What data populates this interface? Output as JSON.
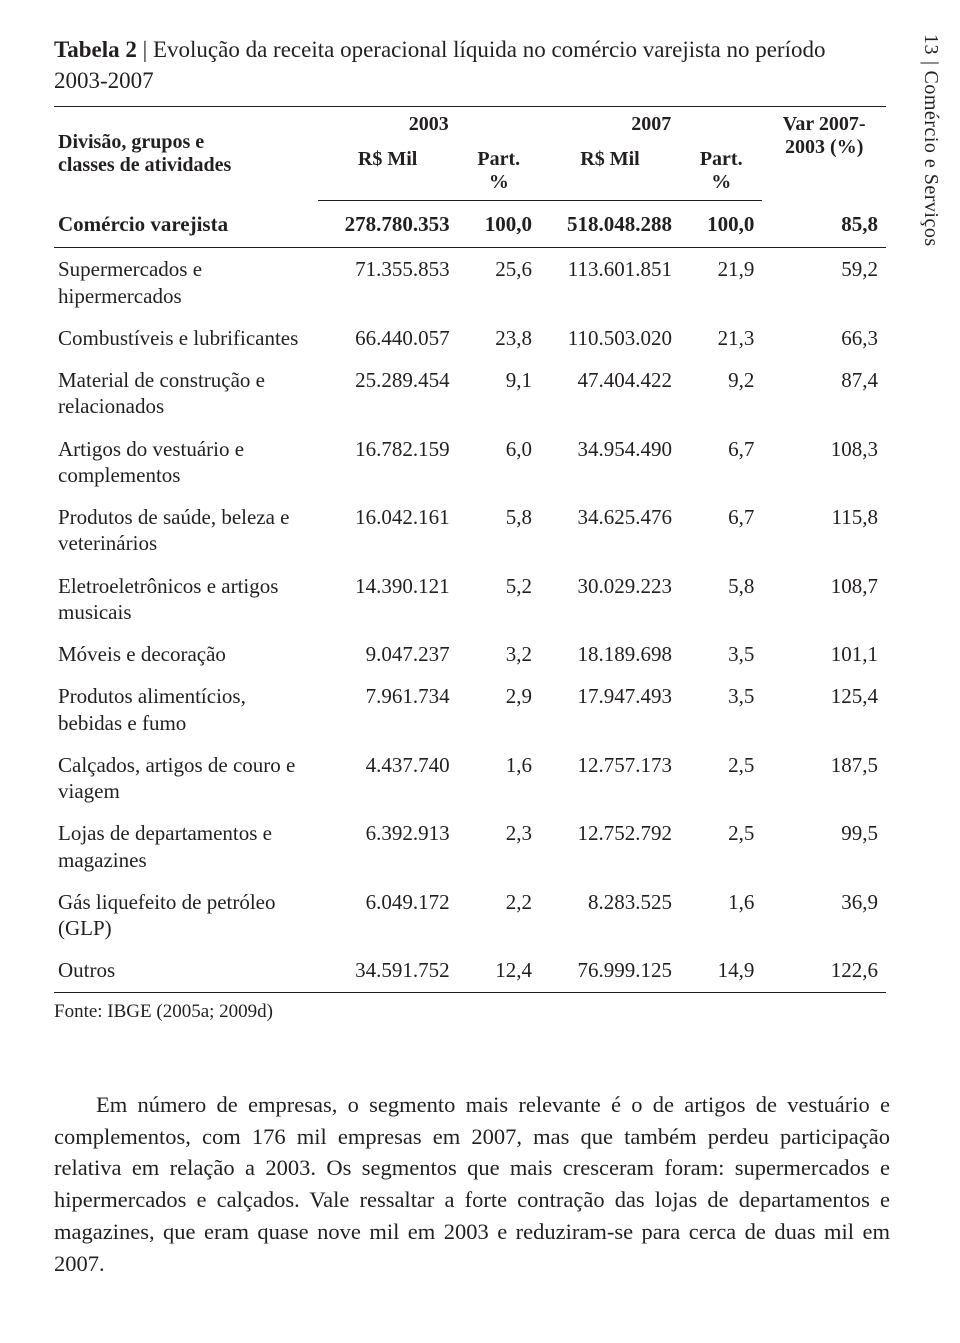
{
  "page_number": "13",
  "side_separator": "|",
  "side_section": "Comércio e Serviços",
  "table": {
    "label": "Tabela 2",
    "sep": " | ",
    "title_rest": "Evolução da receita operacional líquida no comércio varejista no período 2003-2007",
    "header": {
      "rowhead_line1": "Divisão, grupos e",
      "rowhead_line2": "classes de atividades",
      "year_2003": "2003",
      "year_2007": "2007",
      "rsmil": "R$ Mil",
      "part_line1": "Part.",
      "part_line2": "%",
      "var_line1": "Var 2007-",
      "var_line2": "2003 (%)"
    },
    "total_row": {
      "label": "Comércio varejista",
      "rsmil_2003": "278.780.353",
      "part_2003": "100,0",
      "rsmil_2007": "518.048.288",
      "part_2007": "100,0",
      "var": "85,8"
    },
    "rows": [
      {
        "label": "Supermercados e hipermercados",
        "rsmil_2003": "71.355.853",
        "part_2003": "25,6",
        "rsmil_2007": "113.601.851",
        "part_2007": "21,9",
        "var": "59,2"
      },
      {
        "label": "Combustíveis e lubrificantes",
        "rsmil_2003": "66.440.057",
        "part_2003": "23,8",
        "rsmil_2007": "110.503.020",
        "part_2007": "21,3",
        "var": "66,3"
      },
      {
        "label": "Material de construção e relacionados",
        "rsmil_2003": "25.289.454",
        "part_2003": "9,1",
        "rsmil_2007": "47.404.422",
        "part_2007": "9,2",
        "var": "87,4"
      },
      {
        "label": "Artigos do vestuário e complementos",
        "rsmil_2003": "16.782.159",
        "part_2003": "6,0",
        "rsmil_2007": "34.954.490",
        "part_2007": "6,7",
        "var": "108,3"
      },
      {
        "label": "Produtos de saúde, beleza e veterinários",
        "rsmil_2003": "16.042.161",
        "part_2003": "5,8",
        "rsmil_2007": "34.625.476",
        "part_2007": "6,7",
        "var": "115,8"
      },
      {
        "label": "Eletroeletrônicos e artigos musicais",
        "rsmil_2003": "14.390.121",
        "part_2003": "5,2",
        "rsmil_2007": "30.029.223",
        "part_2007": "5,8",
        "var": "108,7"
      },
      {
        "label": "Móveis e decoração",
        "rsmil_2003": "9.047.237",
        "part_2003": "3,2",
        "rsmil_2007": "18.189.698",
        "part_2007": "3,5",
        "var": "101,1"
      },
      {
        "label": "Produtos alimentícios, bebidas e fumo",
        "rsmil_2003": "7.961.734",
        "part_2003": "2,9",
        "rsmil_2007": "17.947.493",
        "part_2007": "3,5",
        "var": "125,4"
      },
      {
        "label": "Calçados, artigos de couro e viagem",
        "rsmil_2003": "4.437.740",
        "part_2003": "1,6",
        "rsmil_2007": "12.757.173",
        "part_2007": "2,5",
        "var": "187,5"
      },
      {
        "label": "Lojas de departamentos e magazines",
        "rsmil_2003": "6.392.913",
        "part_2003": "2,3",
        "rsmil_2007": "12.752.792",
        "part_2007": "2,5",
        "var": "99,5"
      },
      {
        "label": "Gás liquefeito de petróleo (GLP)",
        "rsmil_2003": "6.049.172",
        "part_2003": "2,2",
        "rsmil_2007": "8.283.525",
        "part_2007": "1,6",
        "var": "36,9"
      },
      {
        "label": "Outros",
        "rsmil_2003": "34.591.752",
        "part_2003": "12,4",
        "rsmil_2007": "76.999.125",
        "part_2007": "14,9",
        "var": "122,6"
      }
    ],
    "source": "Fonte: IBGE (2005a; 2009d)"
  },
  "paragraph": "Em número de empresas, o segmento mais relevante é o de artigos de vestuário e complementos, com 176 mil empresas em 2007, mas que também perdeu participação relativa em relação a 2003. Os segmentos que mais cresceram foram: supermercados e hipermercados e calçados. Vale ressaltar a forte contração das lojas de departamentos e magazines, que eram quase nove mil em 2003 e reduziram-se para cerca de duas mil em 2007.",
  "colors": {
    "text": "#231f20",
    "background": "#ffffff",
    "rule": "#231f20"
  }
}
